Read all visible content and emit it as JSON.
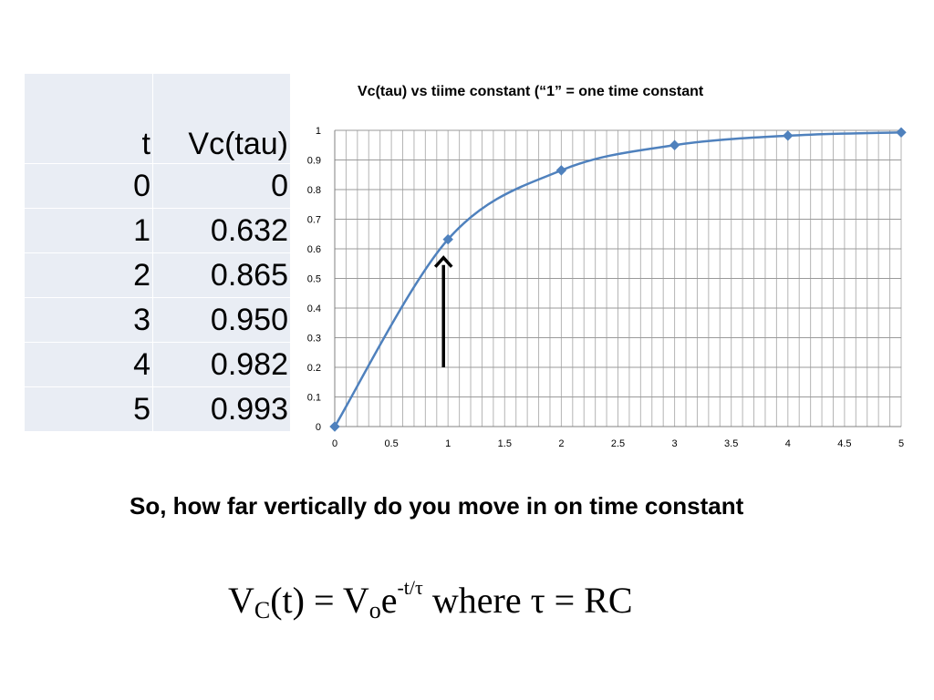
{
  "table": {
    "headers": [
      "t",
      "Vc(tau)"
    ],
    "rows": [
      [
        "0",
        "0"
      ],
      [
        "1",
        "0.632"
      ],
      [
        "2",
        "0.865"
      ],
      [
        "3",
        "0.950"
      ],
      [
        "4",
        "0.982"
      ],
      [
        "5",
        "0.993"
      ]
    ]
  },
  "chart_data": {
    "type": "scatter",
    "title": "Vc(tau) vs tiime constant (“1” = one time constant",
    "xlabel": "",
    "ylabel": "",
    "xlim": [
      0,
      5
    ],
    "ylim": [
      0,
      1
    ],
    "x_ticks": [
      "0",
      "0.5",
      "1",
      "1.5",
      "2",
      "2.5",
      "3",
      "3.5",
      "4",
      "4.5",
      "5"
    ],
    "y_ticks": [
      "0",
      "0.1",
      "0.2",
      "0.3",
      "0.4",
      "0.5",
      "0.6",
      "0.7",
      "0.8",
      "0.9",
      "1"
    ],
    "grid": true,
    "line": "smooth",
    "series": [
      {
        "x": [
          0,
          1,
          2,
          3,
          4,
          5
        ],
        "y": [
          0,
          0.632,
          0.865,
          0.95,
          0.982,
          0.993
        ],
        "color": "#4f81bd"
      }
    ],
    "annotation": {
      "type": "arrow",
      "x": 0.96,
      "y_from": 0.2,
      "y_to": 0.57
    }
  },
  "caption": "So, how far vertically do you move in on time constant",
  "formula": {
    "lhs_v": "V",
    "lhs_sub": "C",
    "lhs_arg": "(t) = V",
    "rhs_sub": "o",
    "rhs_e": "e",
    "exp": "-t/τ",
    "tail": " where τ = RC"
  }
}
